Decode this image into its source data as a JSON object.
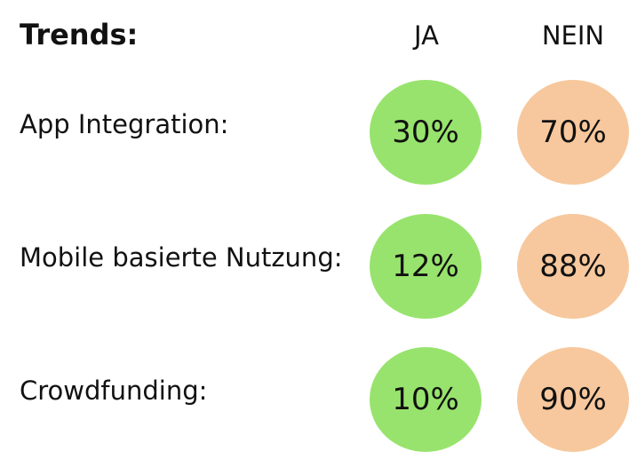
{
  "chart_data": {
    "type": "table",
    "title": "Trends:",
    "columns": [
      "JA",
      "NEIN"
    ],
    "colors": {
      "JA": "#98e36d",
      "NEIN": "#f7c89d"
    },
    "rows": [
      {
        "label": "App Integration:",
        "ja": "30%",
        "nein": "70%",
        "ja_value": 30,
        "nein_value": 70
      },
      {
        "label": "Mobile basierte Nutzung:",
        "ja": "12%",
        "nein": "88%",
        "ja_value": 12,
        "nein_value": 88
      },
      {
        "label": "Crowdfunding:",
        "ja": "10%",
        "nein": "90%",
        "ja_value": 10,
        "nein_value": 90
      }
    ]
  }
}
